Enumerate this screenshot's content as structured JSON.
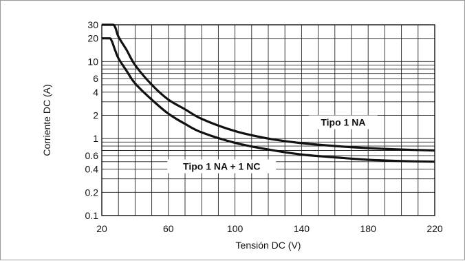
{
  "chart_data": {
    "type": "line",
    "xlabel": "Tensión DC (V)",
    "ylabel": "Corriente DC (A)",
    "x_scale": "linear",
    "y_scale": "log",
    "xlim": [
      20,
      220
    ],
    "ylim": [
      0.1,
      30
    ],
    "grid": true,
    "x_ticks": [
      20,
      60,
      100,
      140,
      180,
      220
    ],
    "x_grid": [
      20,
      30,
      40,
      50,
      60,
      70,
      80,
      90,
      100,
      110,
      120,
      130,
      140,
      150,
      160,
      170,
      180,
      190,
      200,
      210,
      220
    ],
    "y_ticks": [
      {
        "value": 0.1,
        "label": "0.1"
      },
      {
        "value": 0.2,
        "label": "0.2"
      },
      {
        "value": 0.4,
        "label": "0.4"
      },
      {
        "value": 0.6,
        "label": "0.6"
      },
      {
        "value": 1,
        "label": "1"
      },
      {
        "value": 2,
        "label": "2"
      },
      {
        "value": 4,
        "label": "4"
      },
      {
        "value": 6,
        "label": "6"
      },
      {
        "value": 10,
        "label": "10"
      },
      {
        "value": 20,
        "label": "20"
      },
      {
        "value": 30,
        "label": "30"
      }
    ],
    "y_grid": [
      0.1,
      0.2,
      0.3,
      0.4,
      0.5,
      0.6,
      0.7,
      0.8,
      0.9,
      1,
      2,
      3,
      4,
      5,
      6,
      7,
      8,
      9,
      10,
      20,
      30
    ],
    "series": [
      {
        "name": "Tipo 1 NA",
        "points": [
          [
            20,
            30
          ],
          [
            27,
            30
          ],
          [
            30,
            21
          ],
          [
            35,
            14
          ],
          [
            40,
            9
          ],
          [
            50,
            5
          ],
          [
            60,
            3.2
          ],
          [
            70,
            2.4
          ],
          [
            80,
            1.8
          ],
          [
            100,
            1.25
          ],
          [
            120,
            1.0
          ],
          [
            140,
            0.87
          ],
          [
            160,
            0.8
          ],
          [
            180,
            0.75
          ],
          [
            200,
            0.72
          ],
          [
            220,
            0.7
          ]
        ]
      },
      {
        "name": "Tipo 1 NA + 1 NC",
        "points": [
          [
            20,
            20
          ],
          [
            25,
            20
          ],
          [
            28,
            14
          ],
          [
            30,
            11
          ],
          [
            35,
            7.5
          ],
          [
            40,
            5.2
          ],
          [
            50,
            3.2
          ],
          [
            60,
            2.1
          ],
          [
            70,
            1.55
          ],
          [
            80,
            1.2
          ],
          [
            100,
            0.88
          ],
          [
            120,
            0.72
          ],
          [
            140,
            0.62
          ],
          [
            160,
            0.57
          ],
          [
            180,
            0.53
          ],
          [
            200,
            0.51
          ],
          [
            220,
            0.5
          ]
        ]
      }
    ]
  }
}
